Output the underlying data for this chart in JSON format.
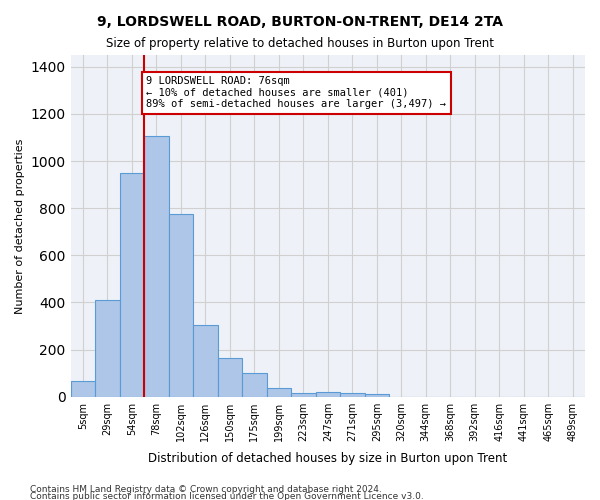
{
  "title": "9, LORDSWELL ROAD, BURTON-ON-TRENT, DE14 2TA",
  "subtitle": "Size of property relative to detached houses in Burton upon Trent",
  "xlabel": "Distribution of detached houses by size in Burton upon Trent",
  "ylabel": "Number of detached properties",
  "bar_color": "#aec6e8",
  "bar_edge_color": "#5b9bd5",
  "grid_color": "#d0d0d0",
  "bg_color": "#eef2f8",
  "annotation_box_color": "#cc0000",
  "vline_color": "#cc0000",
  "annotation_text": "9 LORDSWELL ROAD: 76sqm\n← 10% of detached houses are smaller (401)\n89% of semi-detached houses are larger (3,497) →",
  "footer1": "Contains HM Land Registry data © Crown copyright and database right 2024.",
  "footer2": "Contains public sector information licensed under the Open Government Licence v3.0.",
  "bin_labels": [
    "5sqm",
    "29sqm",
    "54sqm",
    "78sqm",
    "102sqm",
    "126sqm",
    "150sqm",
    "175sqm",
    "199sqm",
    "223sqm",
    "247sqm",
    "271sqm",
    "295sqm",
    "320sqm",
    "344sqm",
    "368sqm",
    "392sqm",
    "416sqm",
    "441sqm",
    "465sqm",
    "489sqm"
  ],
  "bar_heights": [
    65,
    410,
    950,
    1105,
    775,
    305,
    165,
    100,
    35,
    15,
    20,
    15,
    10,
    0,
    0,
    0,
    0,
    0,
    0,
    0,
    0
  ],
  "ylim": [
    0,
    1450
  ],
  "yticks": [
    0,
    200,
    400,
    600,
    800,
    1000,
    1200,
    1400
  ]
}
